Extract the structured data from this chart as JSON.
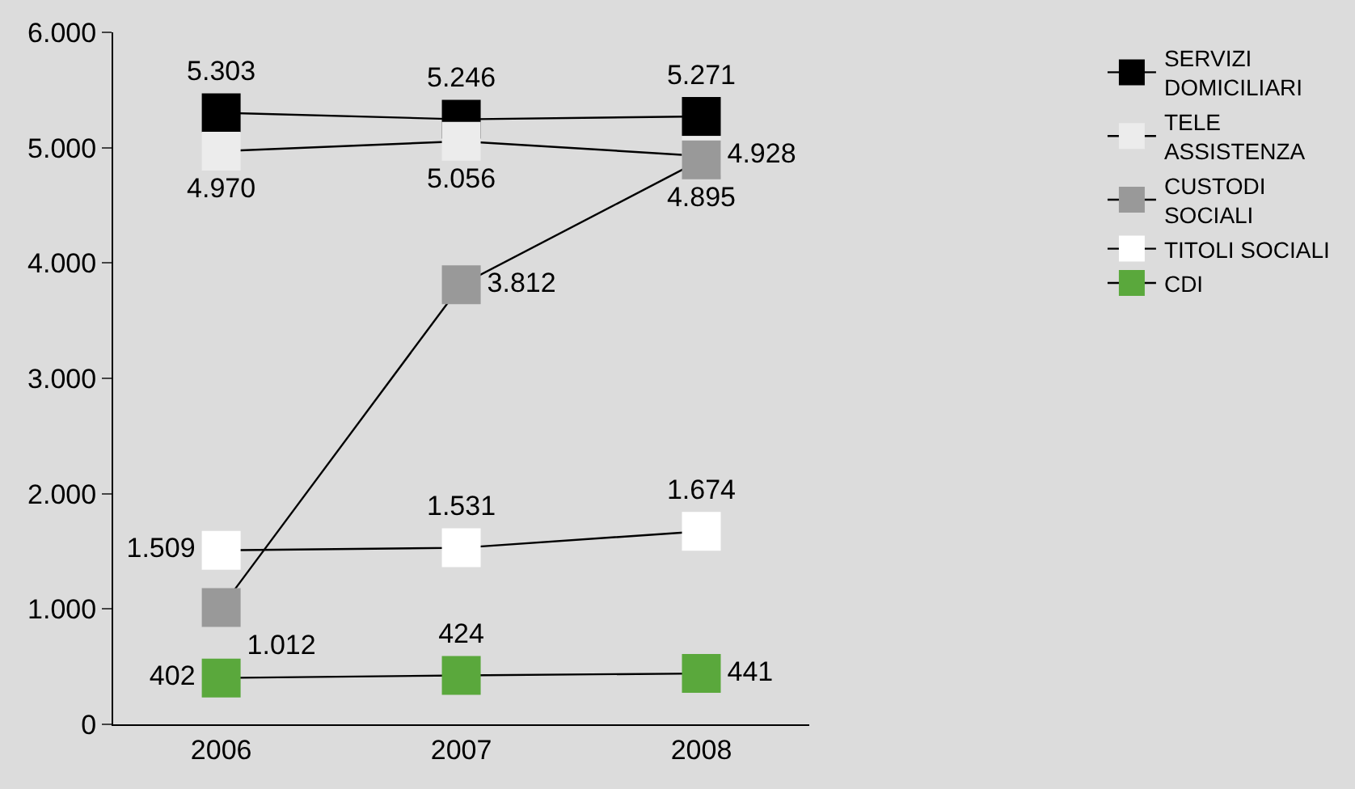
{
  "chart_data": {
    "type": "line",
    "categories": [
      "2006",
      "2007",
      "2008"
    ],
    "series": [
      {
        "name": "SERVIZI\nDOMICILIARI",
        "color": "#000000",
        "values": [
          5303,
          5246,
          5271
        ],
        "value_labels": [
          "5.303",
          "5.246",
          "5.271"
        ]
      },
      {
        "name": "TELE\nASSISTENZA",
        "color": "#ececec",
        "values": [
          4970,
          5056,
          4928
        ],
        "value_labels": [
          "4.970",
          "5.056",
          "4.928"
        ]
      },
      {
        "name": "CUSTODI\nSOCIALI",
        "color": "#999999",
        "values": [
          1012,
          3812,
          4895
        ],
        "value_labels": [
          "1.012",
          "3.812",
          "4.895"
        ]
      },
      {
        "name": "TITOLI SOCIALI",
        "color": "#ffffff",
        "values": [
          1509,
          1531,
          1674
        ],
        "value_labels": [
          "1.509",
          "1.531",
          "1.674"
        ]
      },
      {
        "name": "CDI",
        "color": "#5aa83c",
        "values": [
          402,
          424,
          441
        ],
        "value_labels": [
          "402",
          "424",
          "441"
        ]
      }
    ],
    "ylim": [
      0,
      6000
    ],
    "yticks": [
      {
        "value": 0,
        "label": "0"
      },
      {
        "value": 1000,
        "label": "1.000"
      },
      {
        "value": 2000,
        "label": "2.000"
      },
      {
        "value": 3000,
        "label": "3.000"
      },
      {
        "value": 4000,
        "label": "4.000"
      },
      {
        "value": 5000,
        "label": "5.000"
      },
      {
        "value": 6000,
        "label": "6.000"
      }
    ],
    "grid": false,
    "legend": "right",
    "marker": "square",
    "line_style": "solid"
  }
}
